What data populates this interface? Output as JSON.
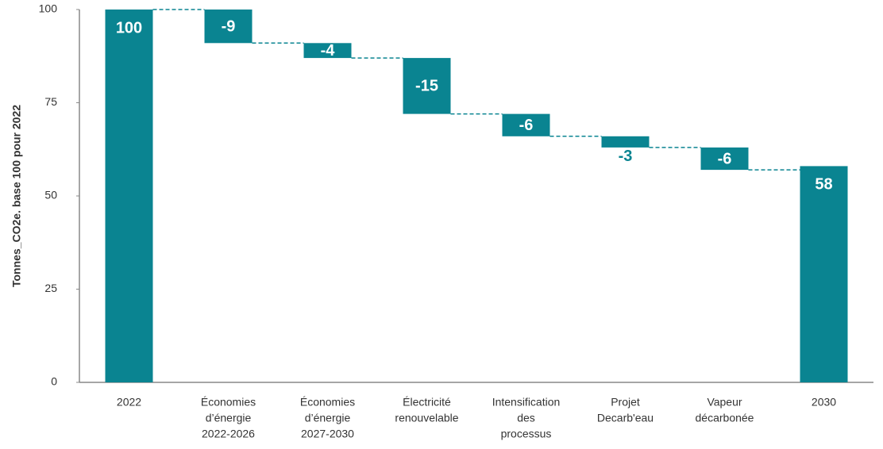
{
  "chart_data": {
    "type": "waterfall",
    "y_label": "Tonnes_CO2e. base 100 pour 2022",
    "categories": [
      [
        "2022"
      ],
      [
        "Économies",
        "d’énergie",
        "2022-2026"
      ],
      [
        "Économies",
        "d’énergie",
        "2027-2030"
      ],
      [
        "Électricité",
        "renouvelable"
      ],
      [
        "Intensification",
        "des",
        "processus"
      ],
      [
        "Projet",
        "Decarb'eau"
      ],
      [
        "Vapeur",
        "décarbonée"
      ],
      [
        "2030"
      ]
    ],
    "values": [
      100,
      -9,
      -4,
      -15,
      -6,
      -3,
      -6,
      58
    ],
    "totals": [
      true,
      false,
      false,
      false,
      false,
      false,
      false,
      true
    ],
    "color": "#0a8491",
    "ylim": [
      0,
      100
    ],
    "yticks": [
      0,
      25,
      50,
      75,
      100
    ],
    "grid": false
  }
}
